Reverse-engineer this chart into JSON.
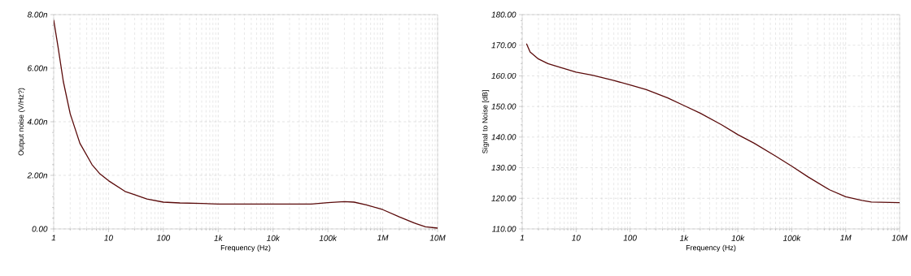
{
  "chart_data": [
    {
      "type": "line",
      "xlabel": "Frequency (Hz)",
      "ylabel": "Output noise (V/Hz?)",
      "log": "x",
      "grid": true,
      "line_style": "solid",
      "xlim": [
        1,
        10000000
      ],
      "ylim": [
        0,
        8
      ],
      "xticks": [
        {
          "value": 1,
          "label": "1"
        },
        {
          "value": 10,
          "label": "10"
        },
        {
          "value": 100,
          "label": "100"
        },
        {
          "value": 1000,
          "label": "1k"
        },
        {
          "value": 10000,
          "label": "10k"
        },
        {
          "value": 100000,
          "label": "100k"
        },
        {
          "value": 1000000,
          "label": "1M"
        },
        {
          "value": 10000000,
          "label": "10M"
        }
      ],
      "yticks": [
        {
          "value": 0,
          "label": "0.00"
        },
        {
          "value": 2,
          "label": "2.00n"
        },
        {
          "value": 4,
          "label": "4.00n"
        },
        {
          "value": 6,
          "label": "6.00n"
        },
        {
          "value": 8,
          "label": "8.00n"
        }
      ],
      "x": [
        1,
        1.2,
        1.5,
        2,
        3,
        5,
        7,
        10,
        20,
        30,
        50,
        100,
        200,
        500,
        1000,
        10000,
        50000,
        100000,
        200000,
        300000,
        500000,
        1000000,
        2000000,
        4000000,
        6000000,
        10000000
      ],
      "series": [
        {
          "color": "#5a0a0a",
          "values": [
            7.8,
            6.8,
            5.5,
            4.3,
            3.2,
            2.4,
            2.05,
            1.8,
            1.4,
            1.28,
            1.12,
            1.0,
            0.97,
            0.95,
            0.93,
            0.93,
            0.93,
            0.98,
            1.02,
            1.0,
            0.9,
            0.72,
            0.45,
            0.2,
            0.08,
            0.03
          ]
        }
      ]
    },
    {
      "type": "line",
      "xlabel": "Frequency (Hz)",
      "ylabel": "Signal to Noise [dB]",
      "log": "x",
      "grid": true,
      "line_style": "solid",
      "xlim": [
        1,
        10000000
      ],
      "ylim": [
        110,
        180
      ],
      "xticks": [
        {
          "value": 1,
          "label": "1"
        },
        {
          "value": 10,
          "label": "10"
        },
        {
          "value": 100,
          "label": "100"
        },
        {
          "value": 1000,
          "label": "1k"
        },
        {
          "value": 10000,
          "label": "10k"
        },
        {
          "value": 100000,
          "label": "100k"
        },
        {
          "value": 1000000,
          "label": "1M"
        },
        {
          "value": 10000000,
          "label": "10M"
        }
      ],
      "yticks": [
        {
          "value": 110,
          "label": "110.00"
        },
        {
          "value": 120,
          "label": "120.00"
        },
        {
          "value": 130,
          "label": "130.00"
        },
        {
          "value": 140,
          "label": "140.00"
        },
        {
          "value": 150,
          "label": "150.00"
        },
        {
          "value": 160,
          "label": "160.00"
        },
        {
          "value": 170,
          "label": "170.00"
        },
        {
          "value": 180,
          "label": "180.00"
        }
      ],
      "x": [
        1.2,
        1.4,
        2,
        3,
        5,
        10,
        20,
        50,
        100,
        200,
        500,
        1000,
        2000,
        5000,
        10000,
        20000,
        50000,
        100000,
        200000,
        500000,
        1000000,
        2000000,
        3000000,
        10000000
      ],
      "series": [
        {
          "color": "#5a0a0a",
          "values": [
            170.5,
            167.8,
            165.5,
            164,
            162.8,
            161.2,
            160.2,
            158.5,
            157,
            155.5,
            152.8,
            150.3,
            147.8,
            144,
            140.8,
            138,
            133.8,
            130.5,
            127,
            122.8,
            120.5,
            119.3,
            118.8,
            118.6
          ]
        }
      ]
    }
  ]
}
